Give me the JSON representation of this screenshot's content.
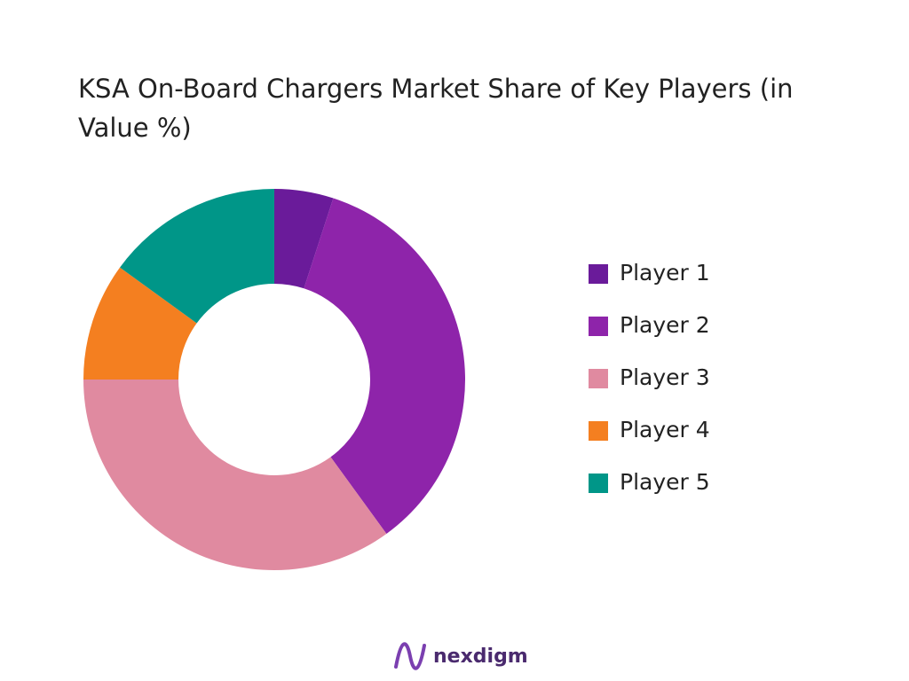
{
  "chart_data": {
    "type": "donut",
    "title": "KSA On-Board Chargers Market Share of Key Players (in Value %)",
    "categories": [
      "Player 1",
      "Player 2",
      "Player 3",
      "Player 4",
      "Player 5"
    ],
    "values": [
      5,
      35,
      35,
      10,
      15
    ],
    "colors": [
      "#6a1b9a",
      "#8e24aa",
      "#e08aa0",
      "#f47f20",
      "#009688"
    ],
    "legend": "right"
  },
  "footer": {
    "brand": "nexdigm"
  }
}
